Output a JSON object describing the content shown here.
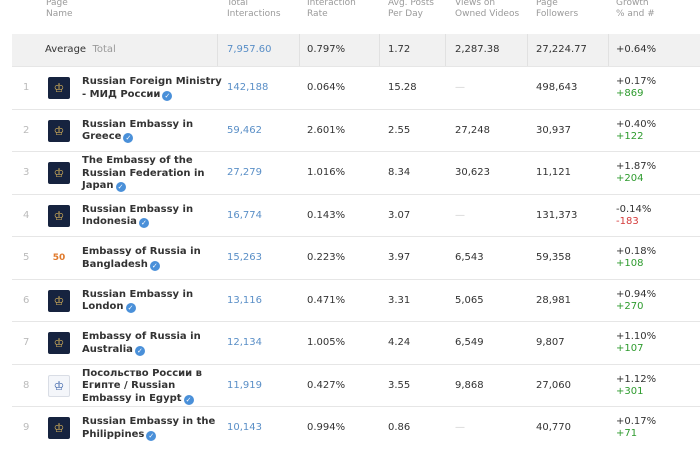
{
  "header": {
    "page_name": [
      "Page",
      "Name"
    ],
    "total_interactions": [
      "Total",
      "Interactions"
    ],
    "interaction_rate": [
      "Interaction",
      "Rate"
    ],
    "avg_posts": [
      "Avg. Posts",
      "Per Day"
    ],
    "views": [
      "Views on",
      "Owned Videos"
    ],
    "followers": [
      "Page",
      "Followers"
    ],
    "growth": [
      "Growth",
      "% and #"
    ]
  },
  "average": {
    "label": "Average",
    "sublabel": "Total",
    "total_interactions": "7,957.60",
    "interaction_rate": "0.797%",
    "avg_posts": "1.72",
    "views": "2,287.38",
    "followers": "27,224.77",
    "growth_pct": "+0.64%"
  },
  "rows": [
    {
      "rank": "1",
      "name_lines": [
        "Russian Foreign Ministry",
        "- МИД России"
      ],
      "icon": "eagle-emblem-icon",
      "avatar": "dark",
      "interactions": "142,188",
      "rate": "0.064%",
      "posts": "15.28",
      "views": "—",
      "followers": "498,643",
      "growth_pct": "+0.17%",
      "growth_num": "+869",
      "sign": "pos"
    },
    {
      "rank": "2",
      "name_lines": [
        "Russian Embassy in",
        "Greece"
      ],
      "icon": "eagle-emblem-icon",
      "avatar": "dark",
      "interactions": "59,462",
      "rate": "2.601%",
      "posts": "2.55",
      "views": "27,248",
      "followers": "30,937",
      "growth_pct": "+0.40%",
      "growth_num": "+122",
      "sign": "pos"
    },
    {
      "rank": "3",
      "name_lines": [
        "The Embassy of the",
        "Russian Federation in",
        "Japan"
      ],
      "icon": "eagle-emblem-icon",
      "avatar": "dark",
      "interactions": "27,279",
      "rate": "1.016%",
      "posts": "8.34",
      "views": "30,623",
      "followers": "11,121",
      "growth_pct": "+1.87%",
      "growth_num": "+204",
      "sign": "pos"
    },
    {
      "rank": "4",
      "name_lines": [
        "Russian Embassy in",
        "Indonesia"
      ],
      "icon": "eagle-emblem-icon",
      "avatar": "dark",
      "interactions": "16,774",
      "rate": "0.143%",
      "posts": "3.07",
      "views": "—",
      "followers": "131,373",
      "growth_pct": "-0.14%",
      "growth_num": "-183",
      "sign": "neg"
    },
    {
      "rank": "5",
      "name_lines": [
        "Embassy of Russia in",
        "Bangladesh"
      ],
      "icon": "anniversary-logo-icon",
      "avatar": "mixed",
      "interactions": "15,263",
      "rate": "0.223%",
      "posts": "3.97",
      "views": "6,543",
      "followers": "59,358",
      "growth_pct": "+0.18%",
      "growth_num": "+108",
      "sign": "pos"
    },
    {
      "rank": "6",
      "name_lines": [
        "Russian Embassy in",
        "London"
      ],
      "icon": "eagle-emblem-icon",
      "avatar": "dark",
      "interactions": "13,116",
      "rate": "0.471%",
      "posts": "3.31",
      "views": "5,065",
      "followers": "28,981",
      "growth_pct": "+0.94%",
      "growth_num": "+270",
      "sign": "pos"
    },
    {
      "rank": "7",
      "name_lines": [
        "Embassy of Russia in",
        "Australia"
      ],
      "icon": "eagle-emblem-icon",
      "avatar": "dark",
      "interactions": "12,134",
      "rate": "1.005%",
      "posts": "4.24",
      "views": "6,549",
      "followers": "9,807",
      "growth_pct": "+1.10%",
      "growth_num": "+107",
      "sign": "pos"
    },
    {
      "rank": "8",
      "name_lines": [
        "Посольство России в",
        "Египте / Russian",
        "Embassy in Egypt"
      ],
      "icon": "eagle-emblem-icon",
      "avatar": "light",
      "interactions": "11,919",
      "rate": "0.427%",
      "posts": "3.55",
      "views": "9,868",
      "followers": "27,060",
      "growth_pct": "+1.12%",
      "growth_num": "+301",
      "sign": "pos"
    },
    {
      "rank": "9",
      "name_lines": [
        "Russian Embassy in the",
        "Philippines"
      ],
      "icon": "eagle-emblem-icon",
      "avatar": "dark",
      "interactions": "10,143",
      "rate": "0.994%",
      "posts": "0.86",
      "views": "—",
      "followers": "40,770",
      "growth_pct": "+0.17%",
      "growth_num": "+71",
      "sign": "pos"
    }
  ]
}
